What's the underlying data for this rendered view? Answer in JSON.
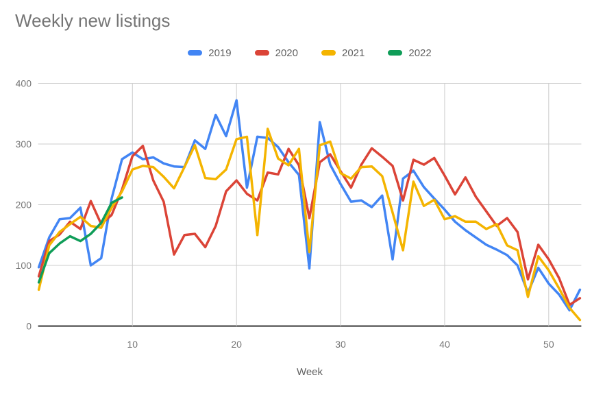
{
  "chart_data": {
    "type": "line",
    "title": "Weekly new listings",
    "xlabel": "Week",
    "ylabel": "",
    "xlim": [
      1,
      53
    ],
    "ylim": [
      0,
      400
    ],
    "x_ticks": [
      10,
      20,
      30,
      40,
      50
    ],
    "y_ticks": [
      0,
      100,
      200,
      300,
      400
    ],
    "grid": true,
    "legend_position": "top-center",
    "x": [
      1,
      2,
      3,
      4,
      5,
      6,
      7,
      8,
      9,
      10,
      11,
      12,
      13,
      14,
      15,
      16,
      17,
      18,
      19,
      20,
      21,
      22,
      23,
      24,
      25,
      26,
      27,
      28,
      29,
      30,
      31,
      32,
      33,
      34,
      35,
      36,
      37,
      38,
      39,
      40,
      41,
      42,
      43,
      44,
      45,
      46,
      47,
      48,
      49,
      50,
      51,
      52,
      53
    ],
    "series": [
      {
        "name": "2019",
        "color": "#4285F4",
        "values": [
          97,
          146,
          176,
          178,
          195,
          100,
          112,
          210,
          275,
          286,
          275,
          278,
          268,
          263,
          262,
          306,
          292,
          348,
          313,
          372,
          228,
          312,
          310,
          295,
          270,
          249,
          95,
          336,
          266,
          234,
          205,
          207,
          196,
          215,
          110,
          243,
          256,
          229,
          210,
          192,
          172,
          158,
          146,
          134,
          126,
          117,
          100,
          55,
          96,
          70,
          52,
          26,
          60
        ]
      },
      {
        "name": "2020",
        "color": "#DB4437",
        "values": [
          82,
          140,
          151,
          172,
          160,
          206,
          168,
          183,
          225,
          280,
          297,
          240,
          205,
          118,
          150,
          152,
          130,
          165,
          222,
          240,
          218,
          207,
          253,
          250,
          292,
          265,
          178,
          270,
          283,
          255,
          228,
          266,
          293,
          279,
          264,
          207,
          274,
          266,
          277,
          248,
          217,
          245,
          213,
          189,
          165,
          178,
          155,
          77,
          134,
          110,
          79,
          35,
          46
        ]
      },
      {
        "name": "2021",
        "color": "#F4B400",
        "values": [
          60,
          133,
          155,
          168,
          180,
          165,
          162,
          195,
          222,
          258,
          264,
          262,
          246,
          227,
          262,
          298,
          244,
          242,
          258,
          308,
          312,
          150,
          325,
          276,
          265,
          292,
          122,
          298,
          304,
          252,
          243,
          262,
          263,
          247,
          187,
          125,
          238,
          198,
          208,
          176,
          181,
          172,
          172,
          160,
          168,
          133,
          125,
          48,
          115,
          92,
          62,
          30,
          10
        ]
      },
      {
        "name": "2022",
        "color": "#0F9D58",
        "values": [
          72,
          120,
          136,
          148,
          140,
          152,
          170,
          203,
          212
        ]
      }
    ],
    "style": {
      "gridline_color": "#cccccc",
      "axis_color": "#333333",
      "tick_label_color": "#757575",
      "title_color": "#757575",
      "line_width": 3.5
    }
  }
}
